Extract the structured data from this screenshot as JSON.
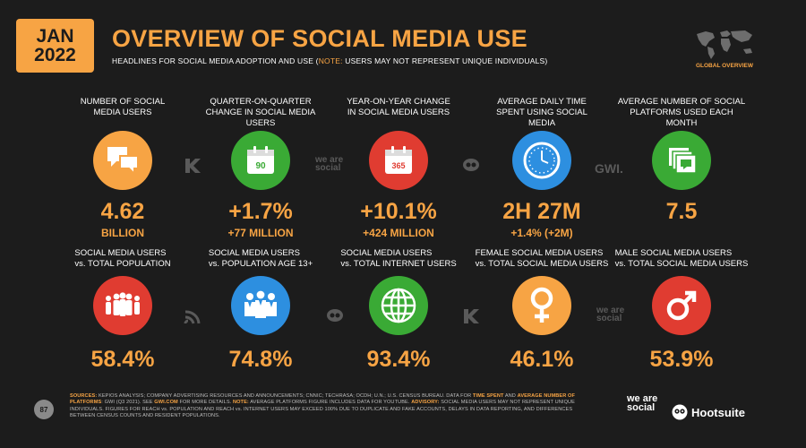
{
  "header": {
    "month": "JAN",
    "year": "2022",
    "title": "OVERVIEW OF SOCIAL MEDIA USE",
    "subtitle_pre": "HEADLINES FOR SOCIAL MEDIA ADOPTION AND USE (",
    "subtitle_note": "NOTE:",
    "subtitle_post": " USERS MAY NOT REPRESENT UNIQUE INDIVIDUALS)",
    "globe_label": "GLOBAL OVERVIEW"
  },
  "colors": {
    "accent": "#f7a444",
    "background": "#1c1c1c",
    "orange": "#f7a444",
    "green": "#3aaa35",
    "red": "#e03c31",
    "blue": "#2d8fe0"
  },
  "row1": [
    {
      "label": "NUMBER OF SOCIAL MEDIA USERS",
      "value": "4.62",
      "sub": "BILLION",
      "icon": "chat-bubbles-icon",
      "color": "orange"
    },
    {
      "label": "QUARTER-ON-QUARTER CHANGE IN SOCIAL MEDIA USERS",
      "value": "+1.7%",
      "sub": "+77 MILLION",
      "icon": "calendar-90-icon",
      "calendar_text": "90",
      "color": "green"
    },
    {
      "label": "YEAR-ON-YEAR CHANGE IN SOCIAL MEDIA USERS",
      "value": "+10.1%",
      "sub": "+424 MILLION",
      "icon": "calendar-365-icon",
      "calendar_text": "365",
      "color": "red"
    },
    {
      "label": "AVERAGE DAILY TIME SPENT USING SOCIAL MEDIA",
      "value": "2H 27M",
      "sub": "+1.4% (+2M)",
      "icon": "clock-icon",
      "color": "blue"
    },
    {
      "label": "AVERAGE NUMBER OF SOCIAL PLATFORMS USED EACH MONTH",
      "value": "7.5",
      "sub": "",
      "icon": "stacked-cards-icon",
      "color": "green"
    }
  ],
  "row2": [
    {
      "label_top": "SOCIAL MEDIA USERS",
      "label_bottom": "vs. TOTAL POPULATION",
      "value": "58.4%",
      "icon": "people-group-icon",
      "color": "red"
    },
    {
      "label_top": "SOCIAL MEDIA USERS",
      "label_bottom": "vs. POPULATION AGE 13+",
      "value": "74.8%",
      "icon": "adults-group-icon",
      "color": "blue"
    },
    {
      "label_top": "SOCIAL MEDIA USERS",
      "label_bottom": "vs. TOTAL INTERNET USERS",
      "value": "93.4%",
      "icon": "globe-grid-icon",
      "color": "green"
    },
    {
      "label_top": "FEMALE SOCIAL MEDIA USERS",
      "label_bottom": "vs. TOTAL SOCIAL MEDIA USERS",
      "value": "46.1%",
      "icon": "female-symbol-icon",
      "color": "orange"
    },
    {
      "label_top": "MALE SOCIAL MEDIA USERS",
      "label_bottom": "vs. TOTAL SOCIAL MEDIA USERS",
      "value": "53.9%",
      "icon": "male-symbol-icon",
      "color": "red"
    }
  ],
  "watermarks": {
    "we_are_social": "we are social",
    "gwi": "GWI.",
    "kepios": "KEPIOS"
  },
  "footer": {
    "page_number": "87",
    "sources_label": "SOURCES:",
    "text_1": " KEPIOS ANALYSIS; COMPANY ADVERTISING RESOURCES AND ANNOUNCEMENTS; CNNIC; TECHRASA; OCDH; U.N.; U.S. CENSUS BUREAU. DATA FOR ",
    "time_spent": "TIME SPENT",
    "text_2": " AND ",
    "avg_platforms": "AVERAGE NUMBER OF PLATFORMS",
    "text_3": ": GWI (Q3 2021). SEE ",
    "gwi_link": "GWI.COM",
    "text_4": " FOR MORE DETAILS. ",
    "note_label": "NOTE:",
    "text_5": " AVERAGE PLATFORMS FIGURE INCLUDES DATA FOR YOUTUBE. ",
    "advisory_label": "ADVISORY:",
    "text_6": " SOCIAL MEDIA USERS MAY NOT REPRESENT UNIQUE INDIVIDUALS. FIGURES FOR REACH vs. POPULATION AND REACH vs. INTERNET USERS MAY EXCEED 100% DUE TO DUPLICATE AND FAKE ACCOUNTS, DELAYS IN DATA REPORTING, AND DIFFERENCES BETWEEN CENSUS COUNTS AND RESIDENT POPULATIONS.",
    "logo_was": "we are social",
    "logo_hootsuite": "Hootsuite"
  }
}
